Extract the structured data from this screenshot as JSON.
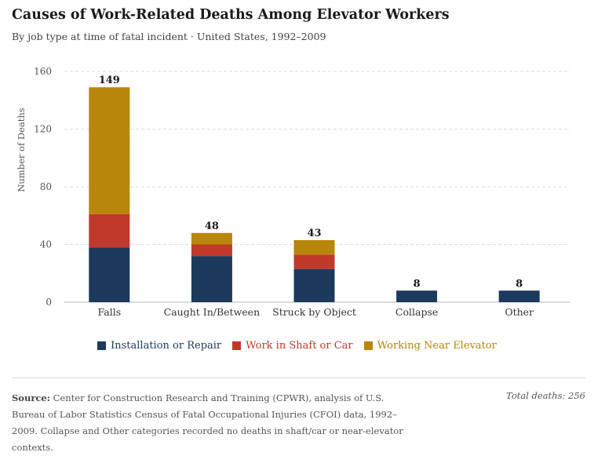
{
  "header": {
    "title": "Causes of Work-Related Deaths Among Elevator Workers",
    "subtitle": "By job type at time of fatal incident · United States, 1992–2009"
  },
  "chart_data": {
    "type": "bar",
    "stacked": true,
    "categories": [
      "Falls",
      "Caught In/Between",
      "Struck by Object",
      "Collapse",
      "Other"
    ],
    "series": [
      {
        "name": "Installation or Repair",
        "color": "#1b3a5c",
        "values": [
          38,
          32,
          23,
          8,
          8
        ]
      },
      {
        "name": "Work in Shaft or Car",
        "color": "#c0392b",
        "values": [
          23,
          8,
          10,
          0,
          0
        ]
      },
      {
        "name": "Working Near Elevator",
        "color": "#b8860b",
        "values": [
          88,
          8,
          10,
          0,
          0
        ]
      }
    ],
    "totals": [
      149,
      48,
      43,
      8,
      8
    ],
    "ylabel": "Number of Deaths",
    "xlabel": "",
    "ylim": [
      0,
      160
    ],
    "yticks": [
      0,
      40,
      80,
      120,
      160
    ],
    "grid": true,
    "legend_position": "bottom"
  },
  "footer": {
    "source_label": "Source:",
    "source_text": "Center for Construction Research and Training (CPWR), analysis of U.S. Bureau of Labor Statistics Census of Fatal Occupational Injuries (CFOI) data, 1992–2009. Collapse and Other categories recorded no deaths in shaft/car or near-elevator contexts.",
    "total_text": "Total deaths: 256"
  }
}
